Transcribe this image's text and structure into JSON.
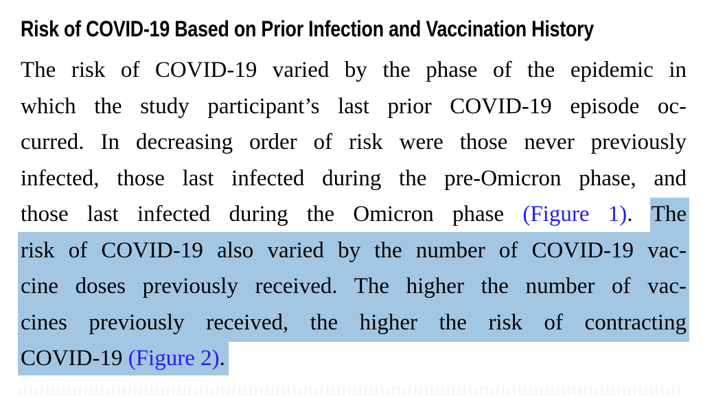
{
  "document": {
    "heading": "Risk of COVID-19 Based on Prior Infection and Vaccination History",
    "paragraph": {
      "lines": [
        {
          "segments": [
            {
              "text": "The risk of COVID-19 varied by the phase of the epidemic in"
            }
          ]
        },
        {
          "segments": [
            {
              "text": "which the study participant’s last prior COVID-19 episode oc-"
            }
          ]
        },
        {
          "segments": [
            {
              "text": "curred. In decreasing order of risk were those never previously"
            }
          ]
        },
        {
          "segments": [
            {
              "text": "infected, those last infected during the pre-Omicron phase, and"
            }
          ]
        },
        {
          "segments": [
            {
              "text": "those last infected during the Omicron phase "
            },
            {
              "text": "(Figure 1)"
            },
            {
              "text": ". "
            },
            {
              "text": "The"
            }
          ]
        },
        {
          "segments": [
            {
              "text": "risk of COVID-19 also varied by the number of COVID-19 vac-"
            }
          ]
        },
        {
          "segments": [
            {
              "text": "cine doses previously received. The higher the number of vac-"
            }
          ]
        },
        {
          "segments": [
            {
              "text": "cines previously received, the higher the risk of contracting"
            }
          ]
        },
        {
          "segments": [
            {
              "text": "COVID-19 "
            },
            {
              "text": "(Figure 2)"
            },
            {
              "text": "."
            }
          ]
        }
      ]
    },
    "colors": {
      "highlight": "#a3c6e2",
      "link": "#2220ea",
      "text": "#000000",
      "background": "#ffffff"
    }
  }
}
